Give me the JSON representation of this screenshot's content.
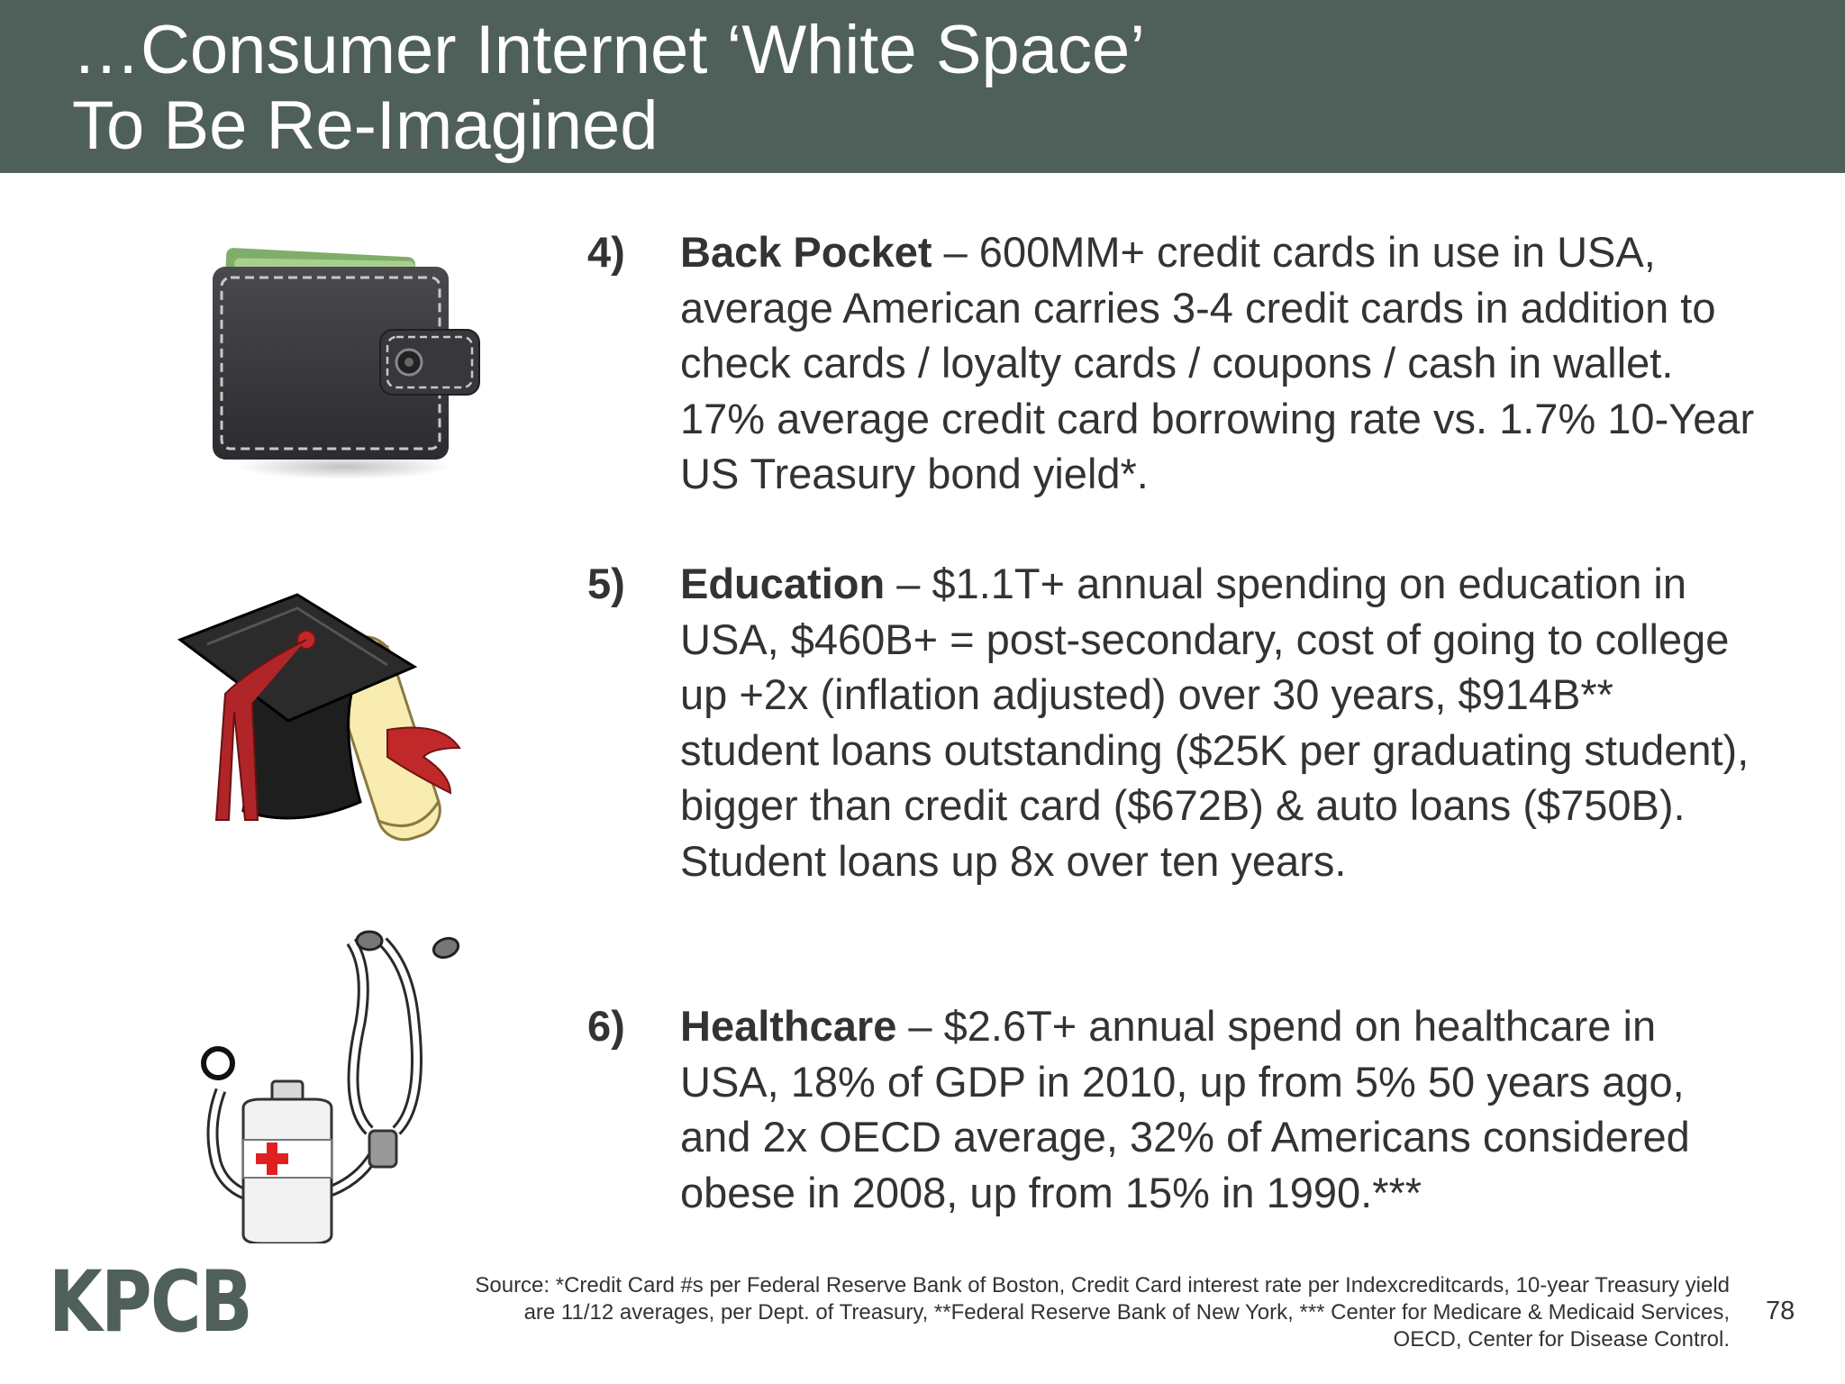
{
  "header": {
    "title_line1": "…Consumer Internet ‘White Space’",
    "title_line2": "To Be Re-Imagined"
  },
  "items": [
    {
      "number": "4)",
      "lead": "Back Pocket",
      "text": " – 600MM+ credit cards in use in USA, average American carries 3-4 credit cards in addition to check cards / loyalty cards / coupons / cash in wallet. 17% average credit card borrowing rate vs. 1.7% 10-Year US Treasury bond yield*.",
      "icon": "wallet-icon"
    },
    {
      "number": "5)",
      "lead": "Education",
      "text": " – $1.1T+ annual spending on education in USA, $460B+ = post-secondary, cost of going to college up +2x (inflation adjusted) over 30 years, $914B** student loans outstanding ($25K per graduating student), bigger than credit card ($672B) & auto loans ($750B). Student loans up 8x over ten years.",
      "icon": "graduation-cap-icon"
    },
    {
      "number": "6)",
      "lead": "Healthcare",
      "text": " – $2.6T+ annual spend on healthcare in USA, 18% of GDP in 2010, up from 5% 50 years ago, and 2x OECD average, 32% of Americans considered obese in 2008, up from 15% in 1990.***",
      "icon": "stethoscope-icon"
    }
  ],
  "footer": {
    "logo": "KPCB",
    "source_line1": "Source: *Credit Card #s per Federal Reserve Bank of Boston, Credit Card interest rate per Indexcreditcards, 10-year Treasury yield",
    "source_line2": "are 11/12 averages, per Dept. of Treasury, **Federal Reserve Bank of New York, *** Center for Medicare & Medicaid Services,",
    "source_line3": "OECD, Center for Disease Control.",
    "page_number": "78"
  },
  "colors": {
    "header_bg": "#4f5f5a",
    "logo": "#4f5f5a",
    "text": "#333333"
  }
}
